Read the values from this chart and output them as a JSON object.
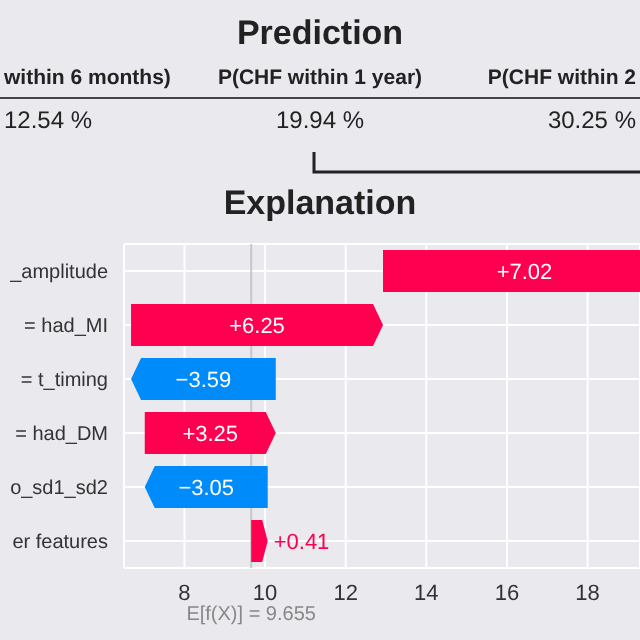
{
  "chart_data": [
    {
      "type": "other",
      "title": "Prediction",
      "categories": [
        "within 6 months)",
        "P(CHF within 1 year)",
        "P(CHF within 2"
      ],
      "values": [
        12.54,
        19.94,
        30.25
      ],
      "value_labels": [
        "12.54 %",
        "19.94 %",
        "30.25 %"
      ]
    },
    {
      "type": "bar",
      "orientation": "horizontal",
      "title": "Explanation",
      "categories": [
        "_amplitude",
        "= had_MI",
        "= t_timing",
        "= had_DM",
        "o_sd1_sd2",
        "er features"
      ],
      "values": [
        7.02,
        6.25,
        -3.59,
        3.25,
        -3.05,
        0.41
      ],
      "base": [
        12.925,
        6.675,
        10.265,
        7.015,
        10.065,
        9.655
      ],
      "colors": [
        "#ff0051",
        "#ff0051",
        "#008bfb",
        "#ff0051",
        "#008bfb",
        "#ff0051"
      ],
      "value_labels": [
        "+7.02",
        "+6.25",
        "−3.59",
        "+3.25",
        "−3.05",
        "+0.41"
      ],
      "xlim": [
        6.5,
        19.3
      ],
      "xticks": [
        8,
        10,
        12,
        14,
        16,
        18
      ],
      "grid": true,
      "ref_lines": [
        {
          "axis": "x",
          "value": 9.655,
          "label": "E[f(X)] = 9.655",
          "color": "#c8c8c8"
        }
      ]
    }
  ]
}
